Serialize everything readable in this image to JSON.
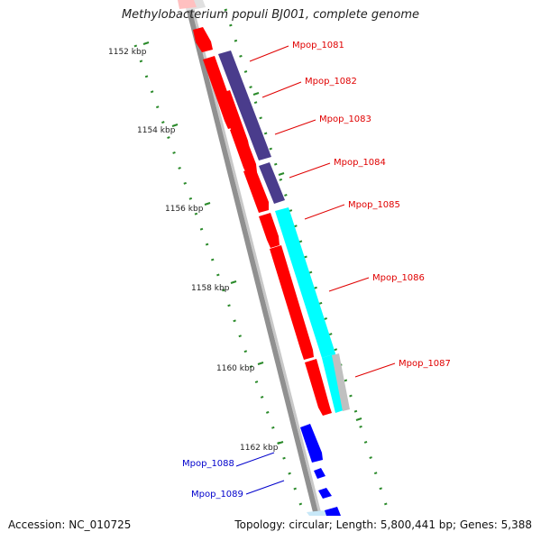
{
  "title": "Methylobacterium populi BJ001, complete genome",
  "footer": {
    "accession": "Accession: NC_010725",
    "topology": "Topology: circular; Length: 5,800,441 bp; Genes: 5,388"
  },
  "colors": {
    "forward_gene": "#ff0000",
    "reverse_gene": "#0000ff",
    "ortholog_dark": "#4a3c8c",
    "ortholog_cyan": "#00ffff",
    "ortholog_grey": "#c0c0c0",
    "backbone": "#909090",
    "tick": "#2a8a2a",
    "label_red": "#e00000",
    "label_blue": "#0000cc"
  },
  "scale_ticks": [
    "1152 kbp",
    "1154 kbp",
    "1156 kbp",
    "1158 kbp",
    "1160 kbp",
    "1162 kbp"
  ],
  "genes": [
    {
      "label": "Mpop_1081",
      "strand": "forward"
    },
    {
      "label": "Mpop_1082",
      "strand": "forward"
    },
    {
      "label": "Mpop_1083",
      "strand": "forward"
    },
    {
      "label": "Mpop_1084",
      "strand": "forward"
    },
    {
      "label": "Mpop_1085",
      "strand": "forward"
    },
    {
      "label": "Mpop_1086",
      "strand": "forward"
    },
    {
      "label": "Mpop_1087",
      "strand": "forward"
    },
    {
      "label": "Mpop_1088",
      "strand": "reverse"
    },
    {
      "label": "Mpop_1089",
      "strand": "reverse"
    }
  ]
}
